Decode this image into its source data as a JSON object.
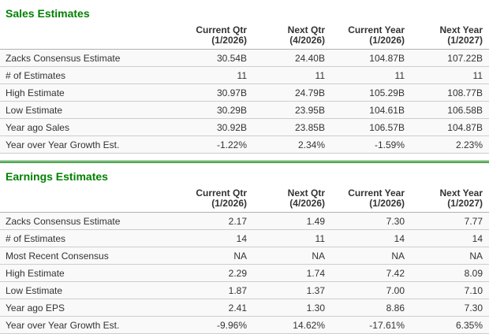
{
  "theme": {
    "title_green": "#028102",
    "divider_green": "#0a820a",
    "divider_fill": "#d6ead6",
    "row_bg": "#f9f9f9",
    "row_border": "#cdcdcd",
    "header_border": "#b0b0b0"
  },
  "sections": [
    {
      "title": "Sales Estimates",
      "columns": [
        {
          "name": "Current Qtr",
          "period": "(1/2026)"
        },
        {
          "name": "Next Qtr",
          "period": "(4/2026)"
        },
        {
          "name": "Current Year",
          "period": "(1/2026)"
        },
        {
          "name": "Next Year",
          "period": "(1/2027)"
        }
      ],
      "rows": [
        {
          "label": "Zacks Consensus Estimate",
          "values": [
            "30.54B",
            "24.40B",
            "104.87B",
            "107.22B"
          ]
        },
        {
          "label": "# of Estimates",
          "values": [
            "11",
            "11",
            "11",
            "11"
          ]
        },
        {
          "label": "High Estimate",
          "values": [
            "30.97B",
            "24.79B",
            "105.29B",
            "108.77B"
          ]
        },
        {
          "label": "Low Estimate",
          "values": [
            "30.29B",
            "23.95B",
            "104.61B",
            "106.58B"
          ]
        },
        {
          "label": "Year ago Sales",
          "values": [
            "30.92B",
            "23.85B",
            "106.57B",
            "104.87B"
          ]
        },
        {
          "label": "Year over Year Growth Est.",
          "values": [
            "-1.22%",
            "2.34%",
            "-1.59%",
            "2.23%"
          ]
        }
      ]
    },
    {
      "title": "Earnings Estimates",
      "columns": [
        {
          "name": "Current Qtr",
          "period": "(1/2026)"
        },
        {
          "name": "Next Qtr",
          "period": "(4/2026)"
        },
        {
          "name": "Current Year",
          "period": "(1/2026)"
        },
        {
          "name": "Next Year",
          "period": "(1/2027)"
        }
      ],
      "rows": [
        {
          "label": "Zacks Consensus Estimate",
          "values": [
            "2.17",
            "1.49",
            "7.30",
            "7.77"
          ]
        },
        {
          "label": "# of Estimates",
          "values": [
            "14",
            "11",
            "14",
            "14"
          ]
        },
        {
          "label": "Most Recent Consensus",
          "values": [
            "NA",
            "NA",
            "NA",
            "NA"
          ]
        },
        {
          "label": "High Estimate",
          "values": [
            "2.29",
            "1.74",
            "7.42",
            "8.09"
          ]
        },
        {
          "label": "Low Estimate",
          "values": [
            "1.87",
            "1.37",
            "7.00",
            "7.10"
          ]
        },
        {
          "label": "Year ago EPS",
          "values": [
            "2.41",
            "1.30",
            "8.86",
            "7.30"
          ]
        },
        {
          "label": "Year over Year Growth Est.",
          "values": [
            "-9.96%",
            "14.62%",
            "-17.61%",
            "6.35%"
          ]
        }
      ]
    }
  ]
}
